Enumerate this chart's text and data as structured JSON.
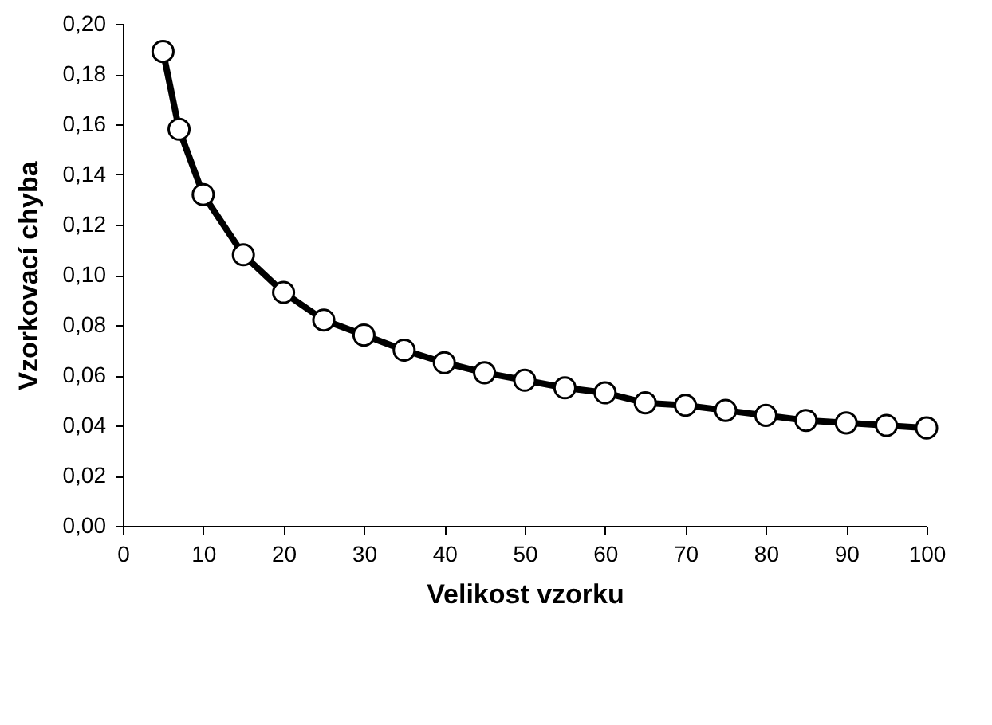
{
  "chart_data": {
    "type": "line",
    "xlabel": "Velikost vzorku",
    "ylabel": "Vzorkovací chyba",
    "x": [
      5,
      7,
      10,
      15,
      20,
      25,
      30,
      35,
      40,
      45,
      50,
      55,
      60,
      65,
      70,
      75,
      80,
      85,
      90,
      95,
      100
    ],
    "series": [
      {
        "color": "#000000",
        "values": [
          0.189,
          0.158,
          0.132,
          0.108,
          0.093,
          0.082,
          0.076,
          0.07,
          0.065,
          0.061,
          0.058,
          0.055,
          0.053,
          0.049,
          0.048,
          0.046,
          0.044,
          0.042,
          0.041,
          0.04,
          0.039
        ]
      }
    ],
    "xlim": [
      0,
      100
    ],
    "xticks": [
      0,
      10,
      20,
      30,
      40,
      50,
      60,
      70,
      80,
      90,
      100
    ],
    "ylim": [
      0,
      0.2
    ],
    "yticks": [
      {
        "value": 0,
        "label": "0,00"
      },
      {
        "value": 0.02,
        "label": "0,02"
      },
      {
        "value": 0.04,
        "label": "0,04"
      },
      {
        "value": 0.06,
        "label": "0,06"
      },
      {
        "value": 0.08,
        "label": "0,08"
      },
      {
        "value": 0.1,
        "label": "0,10"
      },
      {
        "value": 0.12,
        "label": "0,12"
      },
      {
        "value": 0.14,
        "label": "0,14"
      },
      {
        "value": 0.16,
        "label": "0,16"
      },
      {
        "value": 0.18,
        "label": "0,18"
      },
      {
        "value": 0.2,
        "label": "0,20"
      }
    ],
    "grid": false,
    "marker": "circle",
    "line_style": "solid"
  }
}
